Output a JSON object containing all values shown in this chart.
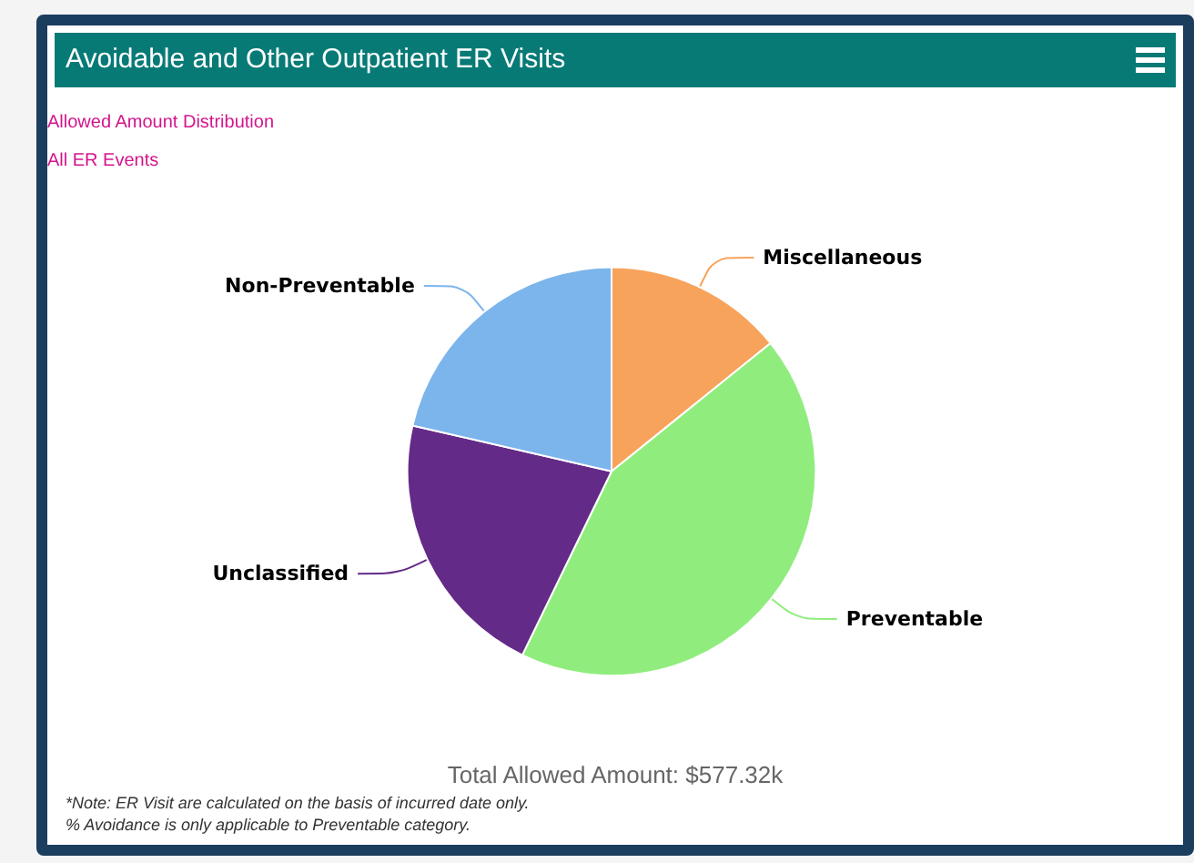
{
  "chart_data": {
    "type": "pie",
    "title": "Avoidable and Other Outpatient ER Visits",
    "subtitle": "Allowed Amount Distribution",
    "categories": [
      "Miscellaneous",
      "Preventable",
      "Unclassified",
      "Non-Preventable"
    ],
    "values": [
      14.2,
      43.0,
      21.4,
      21.4
    ],
    "colors": [
      "#f7a35c",
      "#90ed7d",
      "#642a87",
      "#7cb5ec"
    ],
    "legend": false,
    "annotations": [
      "All ER Events",
      "Total Allowed Amount: $577.32k",
      "*Note: ER Visit are calculated on the basis of incurred date only.",
      "% Avoidance is only applicable to Preventable category."
    ]
  }
}
